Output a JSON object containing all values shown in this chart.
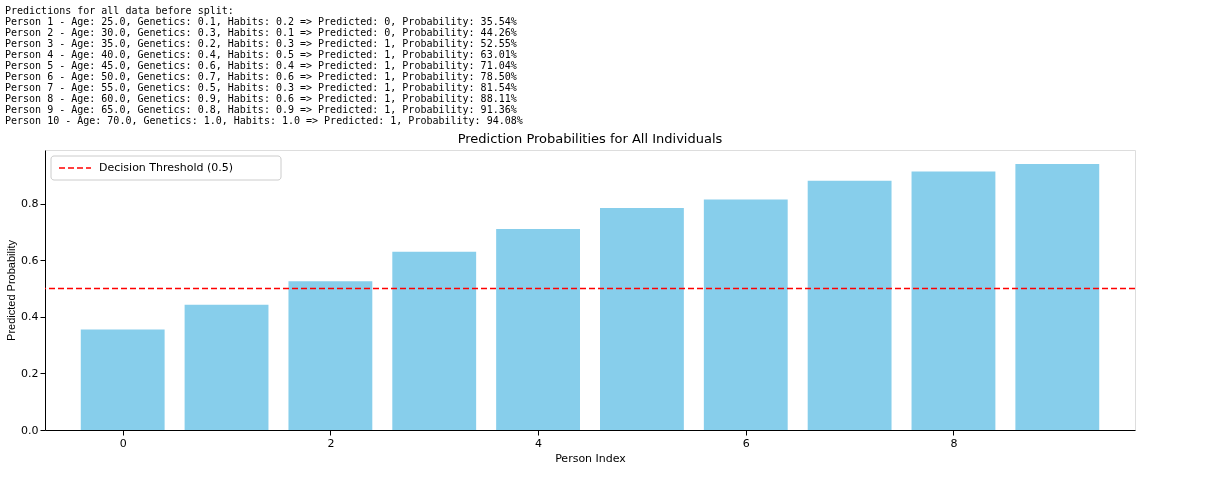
{
  "chart_data": {
    "type": "bar",
    "title": "Prediction Probabilities for All Individuals",
    "xlabel": "Person Index",
    "ylabel": "Predicted Probability",
    "x": [
      0,
      1,
      2,
      3,
      4,
      5,
      6,
      7,
      8,
      9
    ],
    "values": [
      0.3554,
      0.4426,
      0.5255,
      0.6301,
      0.7104,
      0.785,
      0.8154,
      0.8811,
      0.9136,
      0.9408
    ],
    "color": "#87ceeb",
    "xlim": [
      -0.7,
      9.7
    ],
    "xticks": [
      0,
      2,
      4,
      6,
      8
    ],
    "ylim": [
      0,
      0.99
    ],
    "yticks": [
      {
        "value": 0,
        "label": "0.0"
      },
      0.2,
      0.4,
      0.6,
      0.8
    ],
    "grid": false,
    "legend": "top left",
    "ref_lines": [
      {
        "axis": "y",
        "value": 0.5,
        "label": "Decision Threshold (0.5)",
        "color": "#ff0000",
        "line_style": "dashed"
      }
    ],
    "annotations": [
      "Predictions for all data before split:",
      "Person 1 - Age: 25.0, Genetics: 0.1, Habits: 0.2 => Predicted: 0, Probability: 35.54%",
      "Person 2 - Age: 30.0, Genetics: 0.3, Habits: 0.1 => Predicted: 0, Probability: 44.26%",
      "Person 3 - Age: 35.0, Genetics: 0.2, Habits: 0.3 => Predicted: 1, Probability: 52.55%",
      "Person 4 - Age: 40.0, Genetics: 0.4, Habits: 0.5 => Predicted: 1, Probability: 63.01%",
      "Person 5 - Age: 45.0, Genetics: 0.6, Habits: 0.4 => Predicted: 1, Probability: 71.04%",
      "Person 6 - Age: 50.0, Genetics: 0.7, Habits: 0.6 => Predicted: 1, Probability: 78.50%",
      "Person 7 - Age: 55.0, Genetics: 0.5, Habits: 0.3 => Predicted: 1, Probability: 81.54%",
      "Person 8 - Age: 60.0, Genetics: 0.9, Habits: 0.6 => Predicted: 1, Probability: 88.11%",
      "Person 9 - Age: 65.0, Genetics: 0.8, Habits: 0.9 => Predicted: 1, Probability: 91.36%",
      "Person 10 - Age: 70.0, Genetics: 1.0, Habits: 1.0 => Predicted: 1, Probability: 94.08%"
    ]
  }
}
